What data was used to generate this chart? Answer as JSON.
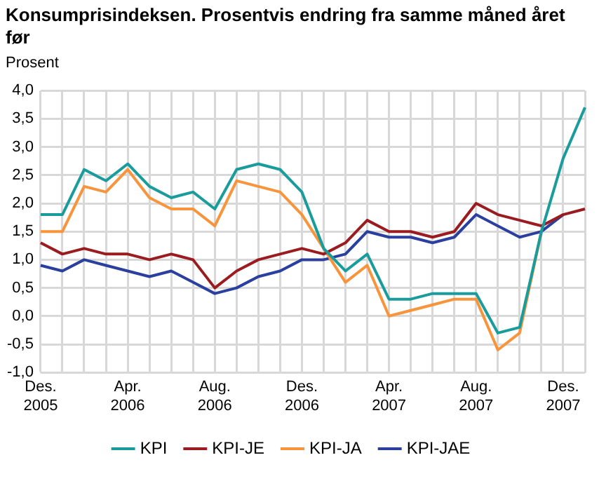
{
  "chart_data": {
    "type": "line",
    "title": "Konsumprisindeksen. Prosentvis endring fra samme måned året før",
    "ylabel": "Prosent",
    "categories": [
      "Des. 2005",
      null,
      null,
      null,
      "Apr. 2006",
      null,
      null,
      null,
      "Aug. 2006",
      null,
      null,
      null,
      "Des. 2006",
      null,
      null,
      null,
      "Apr. 2007",
      null,
      null,
      null,
      "Aug. 2007",
      null,
      null,
      null,
      "Des. 2007",
      null
    ],
    "series": [
      {
        "name": "KPI",
        "color": "#1a9c9c",
        "values": [
          1.8,
          1.8,
          2.6,
          2.4,
          2.7,
          2.3,
          2.1,
          2.2,
          1.9,
          2.6,
          2.7,
          2.6,
          2.2,
          1.2,
          0.8,
          1.1,
          0.3,
          0.3,
          0.4,
          0.4,
          0.4,
          -0.3,
          -0.2,
          1.5,
          2.8,
          3.7
        ]
      },
      {
        "name": "KPI-JE",
        "color": "#9b1c20",
        "values": [
          1.3,
          1.1,
          1.2,
          1.1,
          1.1,
          1.0,
          1.1,
          1.0,
          0.5,
          0.8,
          1.0,
          1.1,
          1.2,
          1.1,
          1.3,
          1.7,
          1.5,
          1.5,
          1.4,
          1.5,
          2.0,
          1.8,
          1.7,
          1.6,
          1.8,
          1.9
        ]
      },
      {
        "name": "KPI-JA",
        "color": "#f7943c",
        "values": [
          1.5,
          1.5,
          2.3,
          2.2,
          2.6,
          2.1,
          1.9,
          1.9,
          1.6,
          2.4,
          2.3,
          2.2,
          1.8,
          1.2,
          0.6,
          0.9,
          0.0,
          0.1,
          0.2,
          0.3,
          0.3,
          -0.6,
          -0.3,
          1.5,
          null,
          null
        ]
      },
      {
        "name": "KPI-JAE",
        "color": "#2b3f9e",
        "values": [
          0.9,
          0.8,
          1.0,
          0.9,
          0.8,
          0.7,
          0.8,
          0.6,
          0.4,
          0.5,
          0.7,
          0.8,
          1.0,
          1.0,
          1.1,
          1.5,
          1.4,
          1.4,
          1.3,
          1.4,
          1.8,
          1.6,
          1.4,
          1.5,
          1.8,
          null
        ]
      }
    ],
    "ylim": [
      -1,
      4
    ],
    "yticks": [
      {
        "value": -1,
        "label": "-1,0"
      },
      {
        "value": -0.5,
        "label": "-0,5"
      },
      {
        "value": 0,
        "label": "0,0"
      },
      {
        "value": 0.5,
        "label": "0,5"
      },
      {
        "value": 1,
        "label": "1,0"
      },
      {
        "value": 1.5,
        "label": "1,5"
      },
      {
        "value": 2,
        "label": "2,0"
      },
      {
        "value": 2.5,
        "label": "2,5"
      },
      {
        "value": 3,
        "label": "3,0"
      },
      {
        "value": 3.5,
        "label": "3,5"
      },
      {
        "value": 4,
        "label": "4,0"
      }
    ],
    "grid": true,
    "legend": "bottom",
    "marker": "none",
    "line_style": "solid"
  }
}
